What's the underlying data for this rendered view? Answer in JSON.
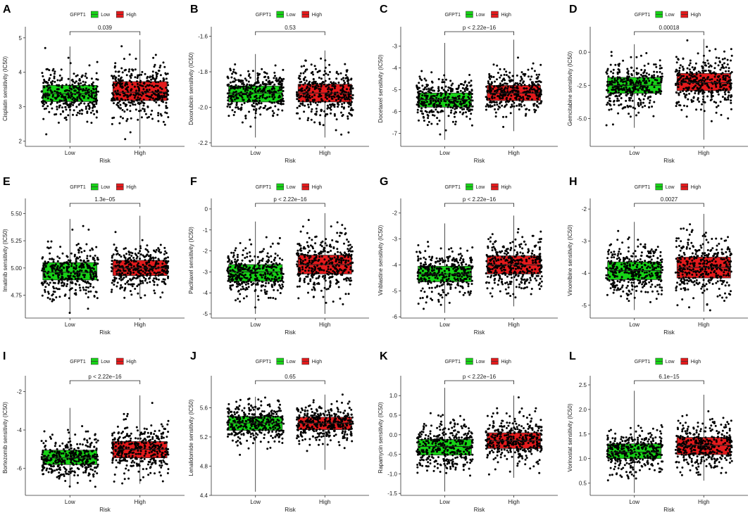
{
  "figure": {
    "legend_title": "GFPT1",
    "legend_low": "Low",
    "legend_high": "High",
    "x_title": "Risk",
    "colors": {
      "low": "#17d317",
      "high": "#e31a1c",
      "point": "#000000",
      "axis": "#333333"
    }
  },
  "chart_data": [
    {
      "type": "box",
      "label": "A",
      "ylabel": "Cisplatin sensitivity (IC50)",
      "categories": [
        "Low",
        "High"
      ],
      "ylim": [
        1.85,
        5.2
      ],
      "yticks": [
        2,
        3,
        4,
        5
      ],
      "ytick_labels": [
        "2",
        "3",
        "4",
        "5"
      ],
      "pvalue": "0.039",
      "groups": [
        {
          "name": "Low",
          "min": 1.95,
          "q1": 3.15,
          "median": 3.38,
          "q3": 3.62,
          "max": 4.75
        },
        {
          "name": "High",
          "min": 1.92,
          "q1": 3.18,
          "median": 3.42,
          "q3": 3.73,
          "max": 4.95
        }
      ]
    },
    {
      "type": "box",
      "label": "B",
      "ylabel": "Doxorubicin sensitivity (IC50)",
      "categories": [
        "Low",
        "High"
      ],
      "ylim": [
        -2.22,
        -1.57
      ],
      "yticks": [
        -2.2,
        -2.0,
        -1.8,
        -1.6
      ],
      "ytick_labels": [
        "-2.2",
        "-2.0",
        "-1.8",
        "-1.6"
      ],
      "pvalue": "0.53",
      "groups": [
        {
          "name": "Low",
          "min": -2.17,
          "q1": -1.97,
          "median": -1.92,
          "q3": -1.88,
          "max": -1.7
        },
        {
          "name": "High",
          "min": -2.17,
          "q1": -1.97,
          "median": -1.92,
          "q3": -1.87,
          "max": -1.68
        }
      ]
    },
    {
      "type": "box",
      "label": "C",
      "ylabel": "Docetaxel sensitivity (IC50)",
      "categories": [
        "Low",
        "High"
      ],
      "ylim": [
        -7.6,
        -2.3
      ],
      "yticks": [
        -7,
        -6,
        -5,
        -4,
        -3
      ],
      "ytick_labels": [
        "-7",
        "-6",
        "-5",
        "-4",
        "-3"
      ],
      "pvalue": "p < 2.22e−16",
      "groups": [
        {
          "name": "Low",
          "min": -7.3,
          "q1": -5.8,
          "median": -5.45,
          "q3": -5.15,
          "max": -2.85
        },
        {
          "name": "High",
          "min": -6.9,
          "q1": -5.5,
          "median": -5.15,
          "q3": -4.8,
          "max": -2.7
        }
      ]
    },
    {
      "type": "box",
      "label": "D",
      "ylabel": "Gemcitabine sensitivity (IC50)",
      "categories": [
        "Low",
        "High"
      ],
      "ylim": [
        -7.1,
        1.6
      ],
      "yticks": [
        -5,
        -2.5,
        0
      ],
      "ytick_labels": [
        "-5.0",
        "-2.5",
        "0.0"
      ],
      "pvalue": "0.00018",
      "groups": [
        {
          "name": "Low",
          "min": -5.7,
          "q1": -3.1,
          "median": -2.5,
          "q3": -1.9,
          "max": 0.6
        },
        {
          "name": "High",
          "min": -6.6,
          "q1": -2.9,
          "median": -2.3,
          "q3": -1.6,
          "max": 1.0
        }
      ]
    },
    {
      "type": "box",
      "label": "E",
      "ylabel": "Imatinib sensitivity (IC50)",
      "categories": [
        "Low",
        "High"
      ],
      "ylim": [
        4.54,
        5.6
      ],
      "yticks": [
        4.75,
        5.0,
        5.25,
        5.5
      ],
      "ytick_labels": [
        "4.75",
        "5.00",
        "5.25",
        "5.50"
      ],
      "pvalue": "1.3e−05",
      "groups": [
        {
          "name": "Low",
          "min": 4.58,
          "q1": 4.89,
          "median": 4.96,
          "q3": 5.05,
          "max": 5.45
        },
        {
          "name": "High",
          "min": 4.72,
          "q1": 4.93,
          "median": 5.0,
          "q3": 5.07,
          "max": 5.48
        }
      ]
    },
    {
      "type": "box",
      "label": "F",
      "ylabel": "Paclitaxel sensitivity (IC50)",
      "categories": [
        "Low",
        "High"
      ],
      "ylim": [
        -5.2,
        0.3
      ],
      "yticks": [
        -5,
        -4,
        -3,
        -2,
        -1,
        0
      ],
      "ytick_labels": [
        "-5",
        "-4",
        "-3",
        "-2",
        "-1",
        "0"
      ],
      "pvalue": "p < 2.22e−16",
      "groups": [
        {
          "name": "Low",
          "min": -5.0,
          "q1": -3.45,
          "median": -3.0,
          "q3": -2.65,
          "max": -0.6
        },
        {
          "name": "High",
          "min": -5.0,
          "q1": -3.1,
          "median": -2.65,
          "q3": -2.2,
          "max": -0.2
        }
      ]
    },
    {
      "type": "box",
      "label": "G",
      "ylabel": "Vinblastine sensitivity (IC50)",
      "categories": [
        "Low",
        "High"
      ],
      "ylim": [
        -6.05,
        -1.6
      ],
      "yticks": [
        -6,
        -5,
        -4,
        -3,
        -2
      ],
      "ytick_labels": [
        "-6",
        "-5",
        "-4",
        "-3",
        "-2"
      ],
      "pvalue": "p < 2.22e−16",
      "groups": [
        {
          "name": "Low",
          "min": -5.85,
          "q1": -4.65,
          "median": -4.35,
          "q3": -4.05,
          "max": -2.4
        },
        {
          "name": "High",
          "min": -5.6,
          "q1": -4.35,
          "median": -4.0,
          "q3": -3.65,
          "max": -2.1
        }
      ]
    },
    {
      "type": "box",
      "label": "H",
      "ylabel": "Vinorelbine sensitivity (IC50)",
      "categories": [
        "Low",
        "High"
      ],
      "ylim": [
        -5.4,
        -1.8
      ],
      "yticks": [
        -5,
        -4,
        -3,
        -2
      ],
      "ytick_labels": [
        "-5",
        "-4",
        "-3",
        "-2"
      ],
      "pvalue": "0.0027",
      "groups": [
        {
          "name": "Low",
          "min": -5.15,
          "q1": -4.2,
          "median": -3.92,
          "q3": -3.65,
          "max": -2.4
        },
        {
          "name": "High",
          "min": -5.2,
          "q1": -4.15,
          "median": -3.82,
          "q3": -3.5,
          "max": -2.15
        }
      ]
    },
    {
      "type": "box",
      "label": "I",
      "ylabel": "Bortezomib sensitivity (IC50)",
      "categories": [
        "Low",
        "High"
      ],
      "ylim": [
        -7.4,
        -1.4
      ],
      "yticks": [
        -6,
        -4,
        -2
      ],
      "ytick_labels": [
        "-6",
        "-4",
        "-2"
      ],
      "pvalue": "p < 2.22e−16",
      "groups": [
        {
          "name": "Low",
          "min": -7.0,
          "q1": -5.8,
          "median": -5.45,
          "q3": -5.05,
          "max": -2.85
        },
        {
          "name": "High",
          "min": -6.8,
          "q1": -5.45,
          "median": -5.0,
          "q3": -4.6,
          "max": -2.2
        }
      ]
    },
    {
      "type": "box",
      "label": "J",
      "ylabel": "Lenalidomide sensitivity (IC50)",
      "categories": [
        "Low",
        "High"
      ],
      "ylim": [
        4.4,
        5.98
      ],
      "yticks": [
        4.4,
        4.8,
        5.2,
        5.6
      ],
      "ytick_labels": [
        "4.4",
        "4.8",
        "5.2",
        "5.6"
      ],
      "pvalue": "0.65",
      "groups": [
        {
          "name": "Low",
          "min": 4.45,
          "q1": 5.29,
          "median": 5.39,
          "q3": 5.48,
          "max": 5.75
        },
        {
          "name": "High",
          "min": 4.75,
          "q1": 5.3,
          "median": 5.39,
          "q3": 5.47,
          "max": 5.78
        }
      ]
    },
    {
      "type": "box",
      "label": "K",
      "ylabel": "Rapamycin sensitivity (IC50)",
      "categories": [
        "Low",
        "High"
      ],
      "ylim": [
        -1.55,
        1.4
      ],
      "yticks": [
        -1.5,
        -1.0,
        -0.5,
        0.0,
        0.5,
        1.0
      ],
      "ytick_labels": [
        "-1.5",
        "-1.0",
        "-0.5",
        "0.0",
        "0.5",
        "1.0"
      ],
      "pvalue": "p < 2.22e−16",
      "groups": [
        {
          "name": "Low",
          "min": -1.45,
          "q1": -0.52,
          "median": -0.3,
          "q3": -0.12,
          "max": 1.2
        },
        {
          "name": "High",
          "min": -1.1,
          "q1": -0.35,
          "median": -0.15,
          "q3": 0.05,
          "max": 1.0
        }
      ]
    },
    {
      "type": "box",
      "label": "L",
      "ylabel": "Vorinostat sensitivity (IC50)",
      "categories": [
        "Low",
        "High"
      ],
      "ylim": [
        0.25,
        2.6
      ],
      "yticks": [
        0.5,
        1.0,
        1.5,
        2.0,
        2.5
      ],
      "ytick_labels": [
        "0.5",
        "1.0",
        "1.5",
        "2.0",
        "2.5"
      ],
      "pvalue": "6.1e−15",
      "groups": [
        {
          "name": "Low",
          "min": 0.3,
          "q1": 1.0,
          "median": 1.13,
          "q3": 1.3,
          "max": 2.38
        },
        {
          "name": "High",
          "min": 0.55,
          "q1": 1.08,
          "median": 1.27,
          "q3": 1.43,
          "max": 2.3
        }
      ]
    }
  ]
}
